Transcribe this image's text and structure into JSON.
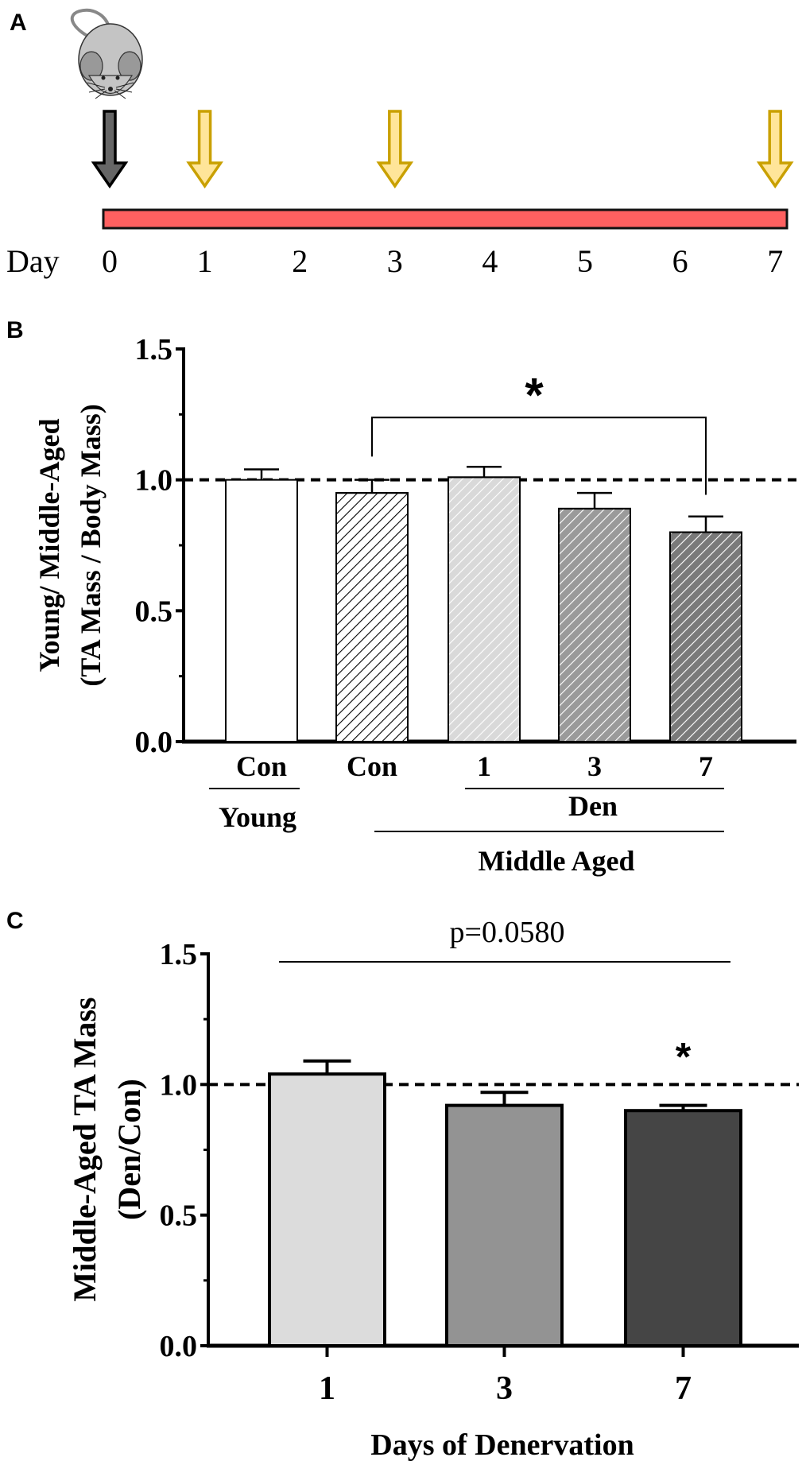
{
  "panel_labels": {
    "a": "A",
    "b": "B",
    "c": "C"
  },
  "timeline": {
    "day_label": "Day",
    "days": [
      "0",
      "1",
      "2",
      "3",
      "4",
      "5",
      "6",
      "7"
    ],
    "black_arrow_day": 0,
    "yellow_arrow_days": [
      1,
      3,
      7
    ],
    "colors": {
      "bar": "#ff6060",
      "black_arrow": "#666666",
      "yellow_arrow_fill": "#ffe599",
      "yellow_arrow_stroke": "#c9a000"
    },
    "icon": "mouse-icon"
  },
  "chart_data": [
    {
      "type": "bar",
      "panel": "B",
      "ylabel_lines": [
        "Young/ Middle-Aged",
        "(TA Mass / Body Mass)"
      ],
      "ylim": [
        0,
        1.5
      ],
      "yticks": [
        "0.0",
        "0.5",
        "1.0",
        "1.5"
      ],
      "reference_line": 1.0,
      "categories": [
        "Con",
        "Con",
        "1",
        "3",
        "7"
      ],
      "values": [
        1.0,
        0.95,
        1.01,
        0.89,
        0.8
      ],
      "errors": [
        0.04,
        0.05,
        0.04,
        0.06,
        0.06
      ],
      "fills": [
        "#ffffff",
        "#ffffff",
        "#d9d9d9",
        "#9a9a9a",
        "#7a7a7a"
      ],
      "hatch_colors": [
        null,
        "#000000",
        "#ffffff",
        "#ffffff",
        "#ffffff"
      ],
      "group_labels": {
        "young": "Young",
        "den": "Den",
        "middle_aged": "Middle Aged"
      },
      "significance": {
        "label": "*",
        "from": 1,
        "to": 4
      }
    },
    {
      "type": "bar",
      "panel": "C",
      "ylabel_lines": [
        "Middle-Aged TA Mass",
        "(Den/Con)"
      ],
      "xlabel": "Days of  Denervation",
      "ylim": [
        0,
        1.5
      ],
      "yticks": [
        "0.0",
        "0.5",
        "1.0",
        "1.5"
      ],
      "reference_line": 1.0,
      "categories": [
        "1",
        "3",
        "7"
      ],
      "values": [
        1.04,
        0.92,
        0.9
      ],
      "errors": [
        0.05,
        0.05,
        0.02
      ],
      "fills": [
        "#dcdcdc",
        "#939393",
        "#454545"
      ],
      "annotation": "p=0.0580",
      "significance_marker": {
        "label": "*",
        "category": "7"
      }
    }
  ]
}
